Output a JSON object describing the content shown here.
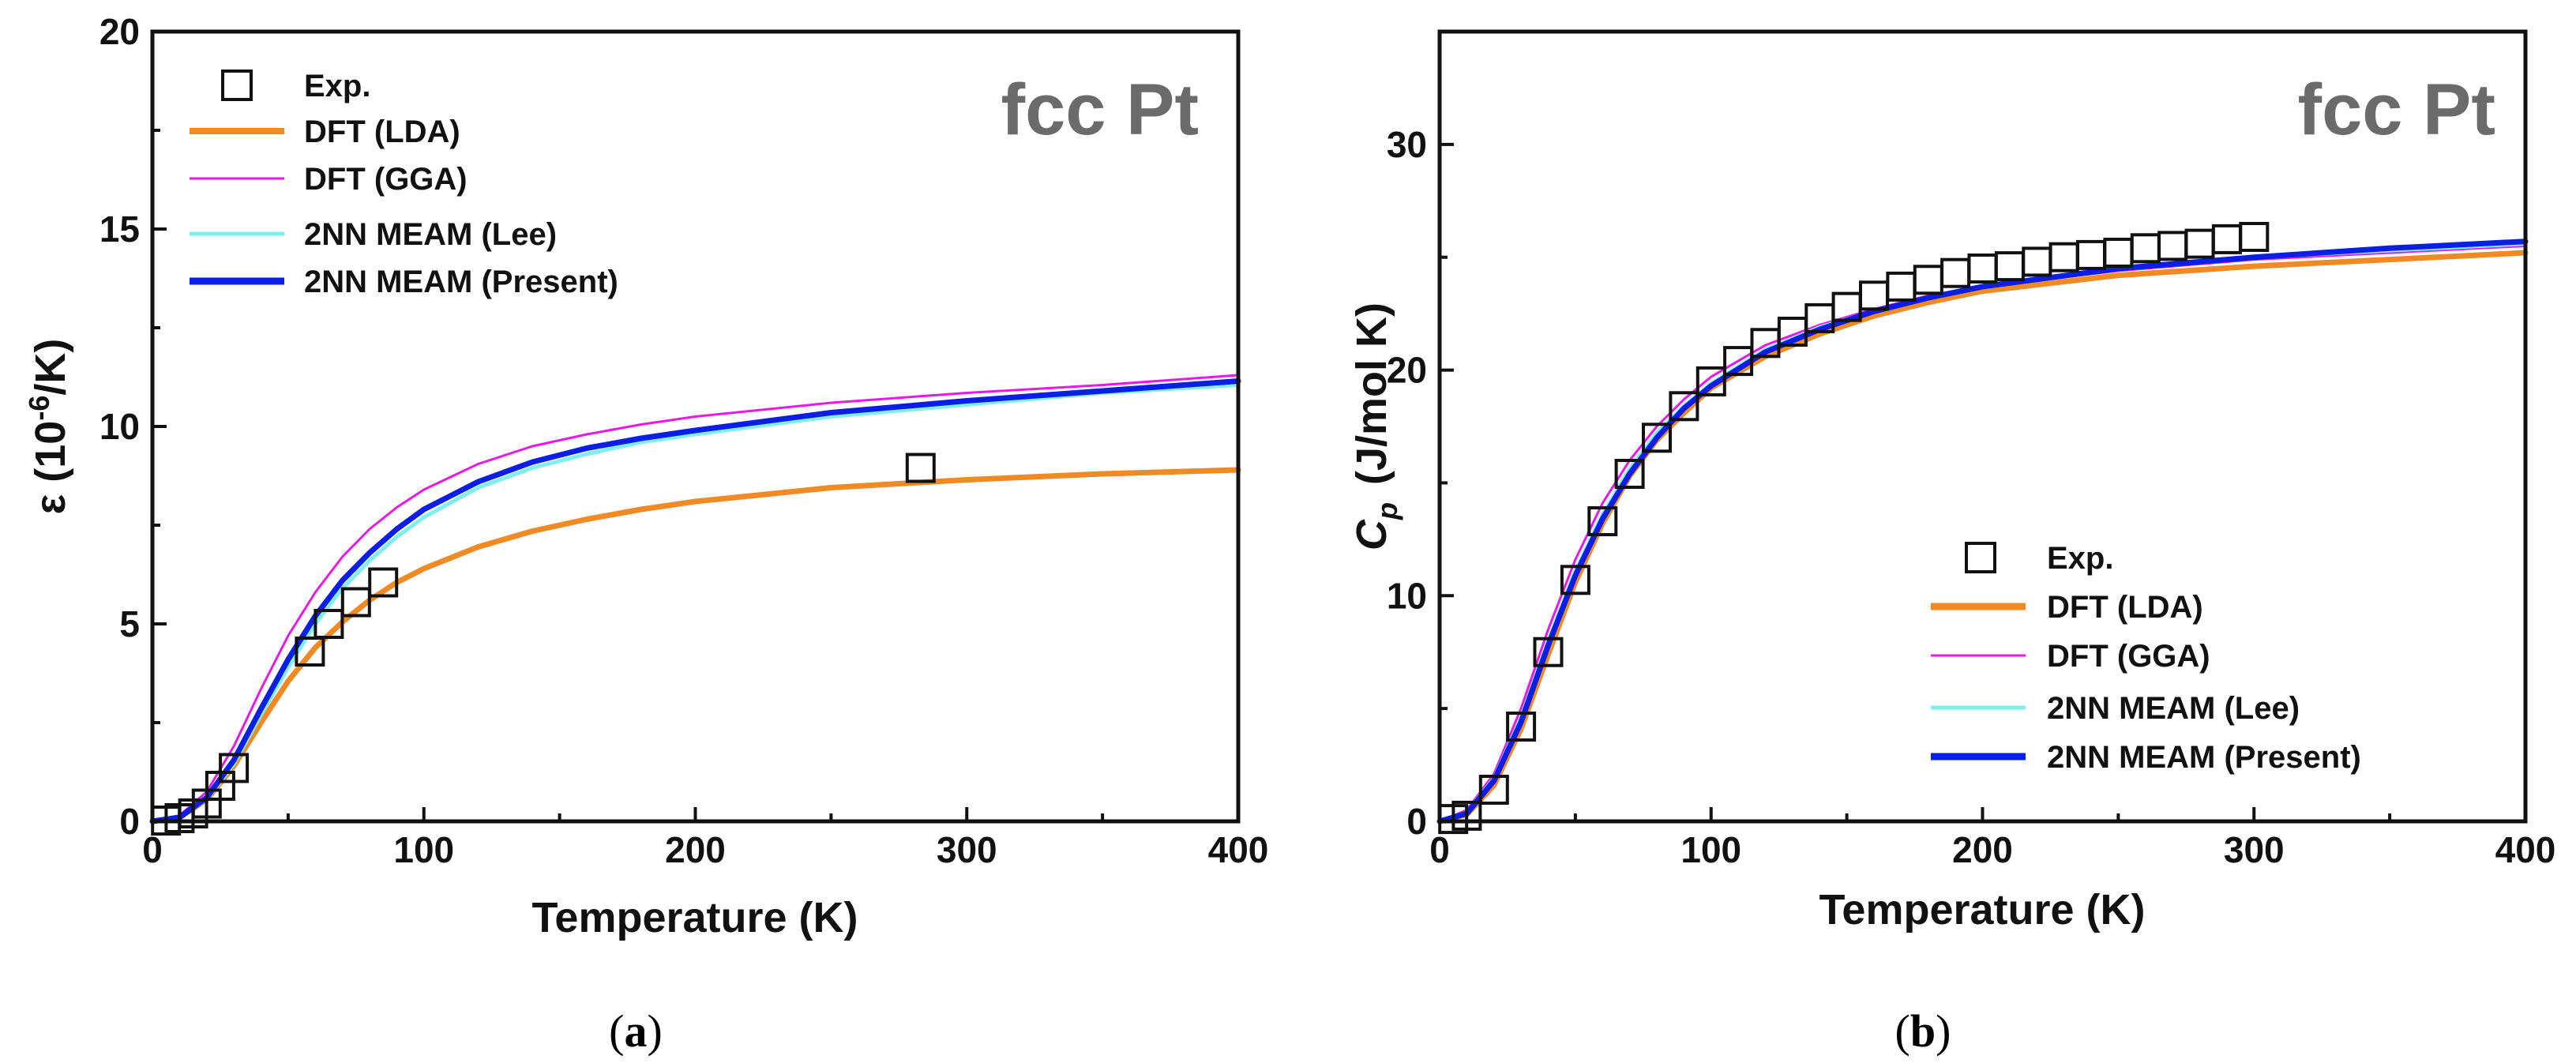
{
  "chart_data": [
    {
      "type": "line",
      "panel": "(a)",
      "panel_label_letter": "a",
      "annotation": "fcc Pt",
      "xlabel": "Temperature (K)",
      "ylabel_prefix": "ε (10",
      "ylabel_sup": "-6",
      "ylabel_suffix": "/K)",
      "xlim": [
        0,
        400
      ],
      "ylim": [
        0,
        20
      ],
      "xticks": [
        0,
        100,
        200,
        300,
        400
      ],
      "yticks": [
        0,
        5,
        10,
        15,
        20
      ],
      "grid": false,
      "legend_position": "top-left",
      "legend": [
        "Exp.",
        "DFT (LDA)",
        "DFT (GGA)",
        "2NN MEAM (Lee)",
        "2NN MEAM (Present)"
      ],
      "series": [
        {
          "name": "DFT (LDA)",
          "color": "#f08a24",
          "style": "line",
          "x": [
            0,
            10,
            20,
            30,
            40,
            50,
            60,
            70,
            80,
            90,
            100,
            120,
            140,
            160,
            180,
            200,
            250,
            300,
            350,
            400
          ],
          "y": [
            0,
            0.1,
            0.55,
            1.4,
            2.5,
            3.55,
            4.4,
            5.05,
            5.6,
            6.05,
            6.4,
            6.95,
            7.35,
            7.65,
            7.9,
            8.1,
            8.45,
            8.65,
            8.8,
            8.9
          ]
        },
        {
          "name": "DFT (GGA)",
          "color": "#e619e6",
          "style": "line",
          "x": [
            0,
            10,
            20,
            30,
            40,
            50,
            60,
            70,
            80,
            90,
            100,
            120,
            140,
            160,
            180,
            200,
            250,
            300,
            350,
            400
          ],
          "y": [
            0,
            0.15,
            0.75,
            1.9,
            3.35,
            4.7,
            5.8,
            6.7,
            7.4,
            7.95,
            8.4,
            9.05,
            9.5,
            9.8,
            10.05,
            10.25,
            10.6,
            10.85,
            11.05,
            11.3
          ]
        },
        {
          "name": "2NN MEAM (Lee)",
          "color": "#7ff0ee",
          "style": "line",
          "x": [
            0,
            10,
            20,
            30,
            40,
            50,
            60,
            70,
            80,
            90,
            100,
            120,
            140,
            160,
            180,
            200,
            250,
            300,
            350,
            400
          ],
          "y": [
            0,
            0.1,
            0.55,
            1.45,
            2.7,
            3.9,
            5.0,
            5.9,
            6.6,
            7.2,
            7.7,
            8.45,
            8.95,
            9.3,
            9.6,
            9.8,
            10.25,
            10.55,
            10.85,
            11.05
          ]
        },
        {
          "name": "2NN MEAM (Present)",
          "color": "#0a1ee6",
          "style": "line",
          "x": [
            0,
            10,
            20,
            30,
            40,
            50,
            60,
            70,
            80,
            90,
            100,
            120,
            140,
            160,
            180,
            200,
            250,
            300,
            350,
            400
          ],
          "y": [
            0,
            0.1,
            0.6,
            1.55,
            2.85,
            4.1,
            5.2,
            6.1,
            6.8,
            7.4,
            7.9,
            8.6,
            9.1,
            9.45,
            9.7,
            9.9,
            10.35,
            10.65,
            10.9,
            11.15
          ]
        },
        {
          "name": "Exp.",
          "color": "#111111",
          "style": "marker",
          "x": [
            5,
            10,
            15,
            20,
            25,
            30,
            58,
            65,
            75,
            85,
            283
          ],
          "y": [
            0.02,
            0.08,
            0.2,
            0.45,
            0.9,
            1.35,
            4.3,
            5.0,
            5.55,
            6.05,
            8.95
          ]
        }
      ]
    },
    {
      "type": "line",
      "panel": "(b)",
      "panel_label_letter": "b",
      "annotation": "fcc Pt",
      "xlabel": "Temperature (K)",
      "ylabel_main": "C",
      "ylabel_sub": "p",
      "ylabel_suffix": "(J/mol K)",
      "xlim": [
        0,
        400
      ],
      "ylim": [
        0,
        35
      ],
      "xticks": [
        0,
        100,
        200,
        300,
        400
      ],
      "yticks": [
        0,
        10,
        20,
        30
      ],
      "grid": false,
      "legend_position": "bottom-right",
      "legend": [
        "Exp.",
        "DFT (LDA)",
        "DFT (GGA)",
        "2NN MEAM (Lee)",
        "2NN MEAM (Present)"
      ],
      "series": [
        {
          "name": "DFT (LDA)",
          "color": "#f08a24",
          "style": "line",
          "x": [
            0,
            10,
            20,
            30,
            40,
            50,
            60,
            70,
            80,
            90,
            100,
            120,
            140,
            160,
            180,
            200,
            250,
            300,
            350,
            400
          ],
          "y": [
            0,
            0.3,
            1.6,
            4.1,
            7.4,
            10.6,
            13.2,
            15.3,
            16.9,
            18.1,
            19.2,
            20.6,
            21.6,
            22.4,
            23.0,
            23.5,
            24.2,
            24.6,
            24.9,
            25.2
          ]
        },
        {
          "name": "DFT (GGA)",
          "color": "#e619e6",
          "style": "line",
          "x": [
            0,
            10,
            20,
            30,
            40,
            50,
            60,
            70,
            80,
            90,
            100,
            120,
            140,
            160,
            180,
            200,
            250,
            300,
            350,
            400
          ],
          "y": [
            0,
            0.5,
            2.1,
            5.0,
            8.5,
            11.6,
            14.1,
            16.0,
            17.5,
            18.7,
            19.7,
            21.1,
            22.0,
            22.7,
            23.3,
            23.7,
            24.4,
            24.9,
            25.2,
            25.5
          ]
        },
        {
          "name": "2NN MEAM (Lee)",
          "color": "#7ff0ee",
          "style": "line",
          "x": [
            0,
            10,
            20,
            30,
            40,
            50,
            60,
            70,
            80,
            90,
            100,
            120,
            140,
            160,
            180,
            200,
            250,
            300,
            350,
            400
          ],
          "y": [
            0,
            0.4,
            1.9,
            4.6,
            8.0,
            11.1,
            13.6,
            15.6,
            17.2,
            18.4,
            19.4,
            20.9,
            21.9,
            22.6,
            23.2,
            23.7,
            24.5,
            25.0,
            25.3,
            25.6
          ]
        },
        {
          "name": "2NN MEAM (Present)",
          "color": "#0a1ee6",
          "style": "line",
          "x": [
            0,
            10,
            20,
            30,
            40,
            50,
            60,
            70,
            80,
            90,
            100,
            120,
            140,
            160,
            180,
            200,
            250,
            300,
            350,
            400
          ],
          "y": [
            0,
            0.35,
            1.8,
            4.4,
            7.8,
            10.9,
            13.4,
            15.4,
            17.0,
            18.3,
            19.3,
            20.8,
            21.8,
            22.6,
            23.2,
            23.7,
            24.5,
            25.0,
            25.4,
            25.7
          ]
        },
        {
          "name": "Exp.",
          "color": "#111111",
          "style": "marker",
          "x": [
            5,
            10,
            20,
            30,
            40,
            50,
            60,
            70,
            80,
            90,
            100,
            110,
            120,
            130,
            140,
            150,
            160,
            170,
            180,
            190,
            200,
            210,
            220,
            230,
            240,
            250,
            260,
            270,
            280,
            290,
            300
          ],
          "y": [
            0.1,
            0.25,
            1.4,
            4.2,
            7.5,
            10.7,
            13.3,
            15.4,
            17.0,
            18.4,
            19.5,
            20.4,
            21.2,
            21.7,
            22.3,
            22.8,
            23.3,
            23.7,
            24.0,
            24.3,
            24.5,
            24.6,
            24.8,
            25.0,
            25.1,
            25.2,
            25.4,
            25.5,
            25.6,
            25.8,
            25.9
          ]
        }
      ]
    }
  ]
}
